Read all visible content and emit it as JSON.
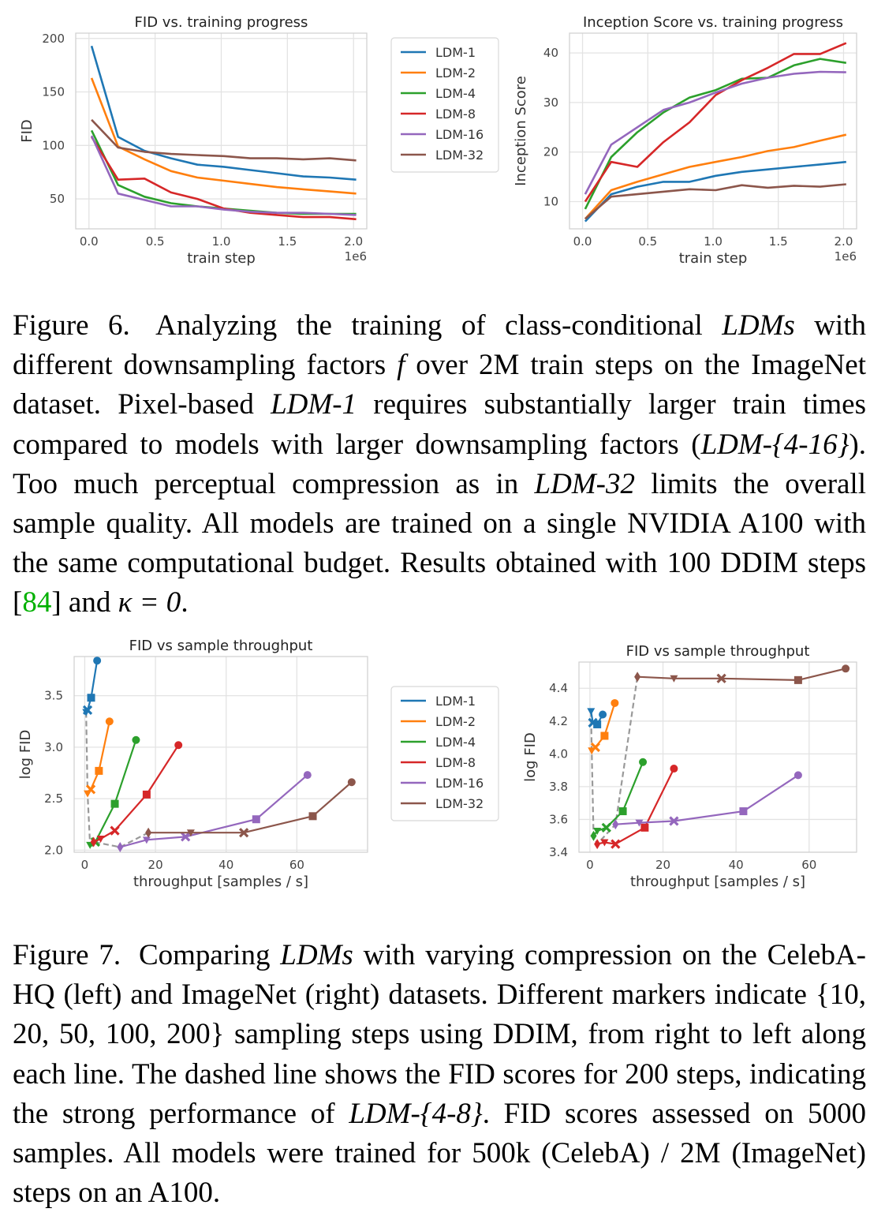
{
  "colors": {
    "LDM-1": "#1f77b4",
    "LDM-2": "#ff7f0e",
    "LDM-4": "#2ca02c",
    "LDM-8": "#d62728",
    "LDM-16": "#9467bd",
    "LDM-32": "#8c564b",
    "dashed": "#999999"
  },
  "chart_data": [
    {
      "type": "line",
      "title": "FID vs. training progress",
      "xlabel": "train step",
      "ylabel": "FID",
      "x_offset_text": "1e6",
      "xlim": [
        -0.1,
        2.1
      ],
      "ylim": [
        22,
        205
      ],
      "xticks": [
        0.0,
        0.5,
        1.0,
        1.5,
        2.0
      ],
      "xtick_labels": [
        "0.0",
        "0.5",
        "1.0",
        "1.5",
        "2.0"
      ],
      "yticks": [
        50,
        100,
        150,
        200
      ],
      "ytick_labels": [
        "50",
        "100",
        "150",
        "200"
      ],
      "grid": true,
      "x": [
        0.02,
        0.22,
        0.42,
        0.62,
        0.82,
        1.02,
        1.22,
        1.42,
        1.62,
        1.82,
        2.02
      ],
      "series": [
        {
          "name": "LDM-1",
          "values": [
            193,
            108,
            95,
            88,
            82,
            80,
            77,
            74,
            71,
            70,
            68
          ]
        },
        {
          "name": "LDM-2",
          "values": [
            163,
            99,
            87,
            76,
            70,
            67,
            64,
            61,
            59,
            57,
            55
          ]
        },
        {
          "name": "LDM-4",
          "values": [
            114,
            63,
            52,
            46,
            43,
            41,
            39,
            37,
            36,
            36,
            36
          ]
        },
        {
          "name": "LDM-8",
          "values": [
            108,
            68,
            69,
            56,
            50,
            41,
            37,
            35,
            33,
            33,
            31
          ]
        },
        {
          "name": "LDM-16",
          "values": [
            109,
            55,
            49,
            43,
            43,
            40,
            38,
            37,
            37,
            36,
            35
          ]
        },
        {
          "name": "LDM-32",
          "values": [
            124,
            98,
            94,
            92,
            91,
            90,
            88,
            88,
            87,
            88,
            86
          ]
        }
      ]
    },
    {
      "type": "line",
      "title": "Inception Score vs. training progress",
      "xlabel": "train step",
      "ylabel": "Inception Score",
      "x_offset_text": "1e6",
      "xlim": [
        -0.1,
        2.1
      ],
      "ylim": [
        4.5,
        44
      ],
      "xticks": [
        0.0,
        0.5,
        1.0,
        1.5,
        2.0
      ],
      "xtick_labels": [
        "0.0",
        "0.5",
        "1.0",
        "1.5",
        "2.0"
      ],
      "yticks": [
        10,
        20,
        30,
        40
      ],
      "ytick_labels": [
        "10",
        "20",
        "30",
        "40"
      ],
      "grid": true,
      "x": [
        0.02,
        0.22,
        0.42,
        0.62,
        0.82,
        1.02,
        1.22,
        1.42,
        1.62,
        1.82,
        2.02
      ],
      "series": [
        {
          "name": "LDM-1",
          "values": [
            6,
            11.5,
            13,
            14,
            14,
            15.2,
            16,
            16.5,
            17,
            17.5,
            18
          ]
        },
        {
          "name": "LDM-2",
          "values": [
            6.5,
            12.3,
            14,
            15.5,
            17,
            18,
            19,
            20.2,
            21,
            22.3,
            23.5
          ]
        },
        {
          "name": "LDM-4",
          "values": [
            8.5,
            19,
            24,
            28,
            31,
            32.5,
            34.8,
            35,
            37.5,
            38.8,
            38
          ]
        },
        {
          "name": "LDM-8",
          "values": [
            10,
            18,
            17,
            22,
            26,
            31.5,
            34.5,
            37,
            39.8,
            39.8,
            42
          ]
        },
        {
          "name": "LDM-16",
          "values": [
            11.5,
            21.5,
            25,
            28.5,
            30,
            32,
            33.8,
            35,
            35.8,
            36.2,
            36.1
          ]
        },
        {
          "name": "LDM-32",
          "values": [
            6.5,
            11,
            11.5,
            12,
            12.5,
            12.3,
            13.3,
            12.8,
            13.2,
            13,
            13.5
          ]
        }
      ]
    },
    {
      "type": "scatter",
      "title": "FID vs sample throughput",
      "xlabel": "throughput [samples / s]",
      "ylabel": "log FID",
      "xlim": [
        -3,
        80
      ],
      "ylim": [
        1.98,
        3.88
      ],
      "xticks": [
        0,
        20,
        40,
        60
      ],
      "xtick_labels": [
        "0",
        "20",
        "40",
        "60"
      ],
      "yticks": [
        2.0,
        2.5,
        3.0,
        3.5
      ],
      "ytick_labels": [
        "2.0",
        "2.5",
        "3.0",
        "3.5"
      ],
      "grid": true,
      "markers_left_to_right": [
        "200 steps",
        "100 steps",
        "50 steps",
        "20 steps",
        "10 steps"
      ],
      "series": [
        {
          "name": "LDM-1",
          "x": [
            0.4,
            0.8,
            1.8,
            3.5
          ],
          "y": [
            3.34,
            3.36,
            3.48,
            3.84
          ]
        },
        {
          "name": "LDM-2",
          "x": [
            0.8,
            1.7,
            4.0,
            7.0
          ],
          "y": [
            2.55,
            2.59,
            2.77,
            3.25
          ]
        },
        {
          "name": "LDM-4",
          "x": [
            1.5,
            3.0,
            8.5,
            14.5
          ],
          "y": [
            2.05,
            2.08,
            2.45,
            3.07
          ]
        },
        {
          "name": "LDM-8",
          "x": [
            2.5,
            4.5,
            8.5,
            17.5,
            26.5
          ],
          "y": [
            2.08,
            2.11,
            2.19,
            2.54,
            3.02
          ]
        },
        {
          "name": "LDM-16",
          "x": [
            10.0,
            17.5,
            28.5,
            48.5,
            63.0
          ],
          "y": [
            2.03,
            2.1,
            2.13,
            2.3,
            2.73
          ]
        },
        {
          "name": "LDM-32",
          "x": [
            18.0,
            30.0,
            45.0,
            64.5,
            75.5
          ],
          "y": [
            2.17,
            2.17,
            2.17,
            2.33,
            2.66
          ]
        }
      ],
      "dashed_200_steps": {
        "x": [
          0.4,
          0.8,
          1.5,
          2.5,
          10.0,
          18.0
        ],
        "y": [
          3.34,
          2.55,
          2.05,
          2.08,
          2.03,
          2.17
        ]
      }
    },
    {
      "type": "scatter",
      "title": "FID vs sample throughput",
      "xlabel": "throughput [samples / s]",
      "ylabel": "log FID",
      "xlim": [
        -3,
        73
      ],
      "ylim": [
        3.4,
        4.56
      ],
      "xticks": [
        0,
        20,
        40,
        60
      ],
      "xtick_labels": [
        "0",
        "20",
        "40",
        "60"
      ],
      "yticks": [
        3.4,
        3.6,
        3.8,
        4.0,
        4.2,
        4.4
      ],
      "ytick_labels": [
        "3.4",
        "3.6",
        "3.8",
        "4.0",
        "4.2",
        "4.4"
      ],
      "grid": true,
      "markers_left_to_right": [
        "200 steps",
        "100 steps",
        "50 steps",
        "20 steps",
        "10 steps"
      ],
      "series": [
        {
          "name": "LDM-1",
          "x": [
            0.3,
            0.8,
            2.0,
            3.5
          ],
          "y": [
            4.26,
            4.19,
            4.18,
            4.24
          ]
        },
        {
          "name": "LDM-2",
          "x": [
            0.5,
            1.5,
            4.0,
            6.8
          ],
          "y": [
            4.02,
            4.04,
            4.11,
            4.31
          ]
        },
        {
          "name": "LDM-4",
          "x": [
            1.0,
            2.0,
            4.5,
            9.0,
            14.5
          ],
          "y": [
            3.5,
            3.53,
            3.55,
            3.65,
            3.95
          ]
        },
        {
          "name": "LDM-8",
          "x": [
            2.0,
            4.0,
            7.0,
            15.0,
            23.0
          ],
          "y": [
            3.45,
            3.46,
            3.45,
            3.55,
            3.91
          ]
        },
        {
          "name": "LDM-16",
          "x": [
            7.0,
            13.5,
            23.0,
            42.0,
            57.0
          ],
          "y": [
            3.57,
            3.58,
            3.59,
            3.65,
            3.87
          ]
        },
        {
          "name": "LDM-32",
          "x": [
            13.0,
            23.0,
            36.0,
            57.0,
            70.0
          ],
          "y": [
            4.47,
            4.46,
            4.46,
            4.45,
            4.52
          ]
        }
      ],
      "dashed_200_steps": {
        "x": [
          0.3,
          0.5,
          1.0,
          2.0,
          7.0,
          13.0
        ],
        "y": [
          4.26,
          4.02,
          3.5,
          3.45,
          3.57,
          4.47
        ]
      }
    }
  ],
  "legend_labels": [
    "LDM-1",
    "LDM-2",
    "LDM-4",
    "LDM-8",
    "LDM-16",
    "LDM-32"
  ],
  "captions": {
    "fig6": {
      "label": "Figure 6.",
      "t1": " Analyzing the training of class-conditional ",
      "i1": "LDMs",
      "t2": " with different downsampling factors ",
      "i2": "f",
      "t3": " over 2M train steps on the ImageNet dataset. Pixel-based ",
      "i3": "LDM-1",
      "t4": " requires substantially larger train times compared to models with larger downsampling factors (",
      "i4": "LDM-{4-16}",
      "t5": "). Too much perceptual compression as in ",
      "i5": "LDM-32",
      "t6": " limits the overall sample quality. All models are trained on a single NVIDIA A100 with the same computational budget. Results obtained with 100 DDIM steps [",
      "cite": "84",
      "t7": "] and ",
      "i6": "κ = 0",
      "t8": "."
    },
    "fig7": {
      "label": "Figure 7.",
      "t1": " Comparing ",
      "i1": "LDMs",
      "t2": " with varying compression on the CelebA-HQ (left) and ImageNet (right) datasets. Different markers indicate {10, 20, 50, 100, 200} sampling steps using DDIM, from right to left along each line. The dashed line shows the FID scores for 200 steps, indicating the strong performance of ",
      "i2": "LDM-{4-8}",
      "t3": ". FID scores assessed on 5000 samples. All models were trained for 500k (CelebA) / 2M (ImageNet) steps on an A100."
    }
  }
}
